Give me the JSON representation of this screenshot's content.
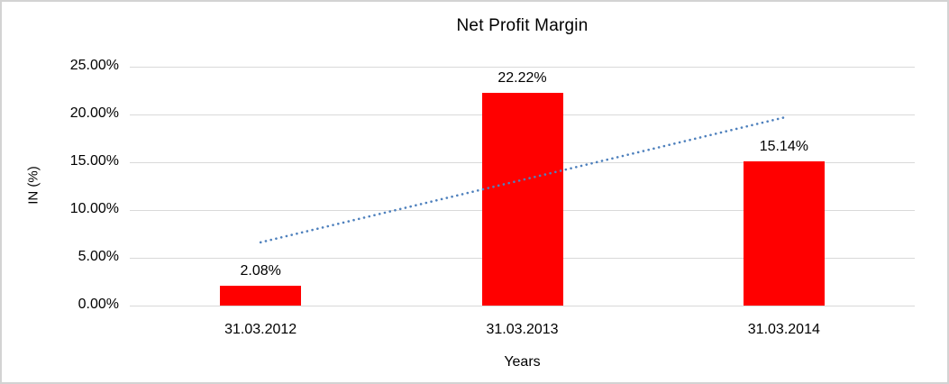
{
  "chart_data": {
    "type": "bar",
    "title": "Net Profit Margin",
    "xlabel": "Years",
    "ylabel": "IN (%)",
    "categories": [
      "31.03.2012",
      "31.03.2013",
      "31.03.2014"
    ],
    "values": [
      2.08,
      22.22,
      15.14
    ],
    "data_labels": [
      "2.08%",
      "22.22%",
      "15.14%"
    ],
    "yticks": [
      "0.00%",
      "5.00%",
      "10.00%",
      "15.00%",
      "20.00%",
      "25.00%"
    ],
    "ylim": [
      0,
      25
    ],
    "grid": true,
    "legend": "none",
    "bar_color": "#ff0000",
    "gridline_color": "#d9d9d9",
    "trendline": {
      "type": "linear",
      "style": "dotted",
      "color": "#4f81bd",
      "start_value": 6.62,
      "end_value": 19.68
    }
  }
}
